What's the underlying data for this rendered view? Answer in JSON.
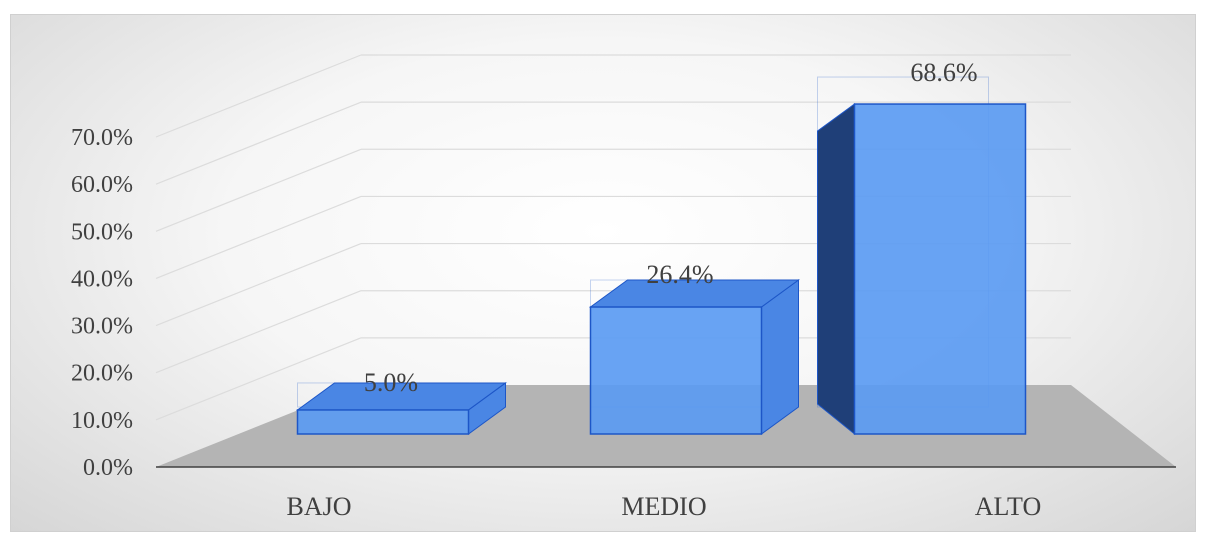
{
  "chart_data": {
    "type": "bar",
    "categories": [
      "BAJO",
      "MEDIO",
      "ALTO"
    ],
    "values": [
      5.0,
      26.4,
      68.6
    ],
    "value_labels": [
      "5.0%",
      "26.4%",
      "68.6%"
    ],
    "ylim": [
      0,
      70
    ],
    "yticks": [
      0,
      10,
      20,
      30,
      40,
      50,
      60,
      70
    ],
    "ytick_labels": [
      "0.0%",
      "10.0%",
      "20.0%",
      "30.0%",
      "40.0%",
      "50.0%",
      "60.0%",
      "70.0%"
    ],
    "title": "",
    "xlabel": "",
    "ylabel": "",
    "grid": true,
    "legend": "none",
    "style": "3d-column",
    "colors": {
      "bar_front": "#5b9bf2",
      "bar_top": "#4a86e4",
      "bar_side": "#1f3f78",
      "bar_edge": "#1d56c7",
      "floor": "#b4b4b4",
      "gridline": "#dcdcdc",
      "axis": "#404040"
    }
  }
}
